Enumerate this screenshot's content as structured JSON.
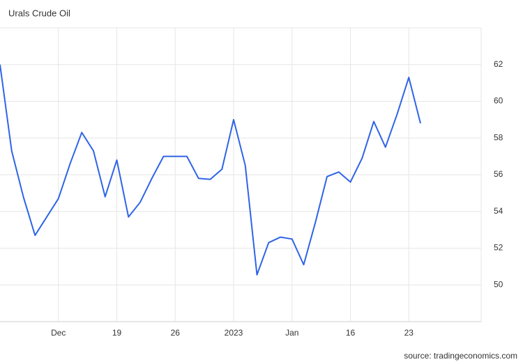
{
  "chart_data": {
    "type": "line",
    "title": "Urals Crude Oil",
    "source": "source: tradingeconomics.com",
    "categories": [
      null,
      null,
      null,
      null,
      null,
      "Dec",
      null,
      null,
      null,
      null,
      "19",
      null,
      null,
      null,
      null,
      "26",
      null,
      null,
      null,
      null,
      "2023",
      null,
      null,
      null,
      null,
      "Jan",
      null,
      null,
      null,
      null,
      "16",
      null,
      null,
      null,
      null,
      "23",
      null
    ],
    "series": [
      {
        "name": "Urals Crude Oil",
        "color": "#2f64e8",
        "values": [
          62.0,
          57.3,
          54.8,
          52.7,
          53.7,
          54.7,
          56.6,
          58.3,
          57.3,
          54.8,
          56.8,
          53.7,
          54.5,
          55.8,
          57.0,
          57.0,
          57.0,
          55.8,
          55.75,
          56.3,
          59.0,
          56.5,
          50.55,
          52.3,
          52.6,
          52.5,
          51.1,
          53.4,
          55.9,
          56.15,
          55.6,
          56.9,
          58.9,
          57.5,
          59.3,
          61.3,
          58.8
        ]
      }
    ],
    "ylim": [
      48,
      64
    ],
    "yticks": [
      50,
      52,
      54,
      56,
      58,
      60,
      62
    ],
    "grid": true
  }
}
